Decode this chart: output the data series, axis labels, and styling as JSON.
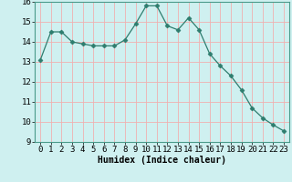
{
  "x": [
    0,
    1,
    2,
    3,
    4,
    5,
    6,
    7,
    8,
    9,
    10,
    11,
    12,
    13,
    14,
    15,
    16,
    17,
    18,
    19,
    20,
    21,
    22,
    23
  ],
  "y": [
    13.1,
    14.5,
    14.5,
    14.0,
    13.9,
    13.8,
    13.8,
    13.8,
    14.1,
    14.9,
    15.8,
    15.8,
    14.8,
    14.6,
    15.2,
    14.6,
    13.4,
    12.8,
    12.3,
    11.6,
    10.7,
    10.2,
    9.85,
    9.55
  ],
  "line_color": "#2e7d6e",
  "marker": "D",
  "marker_size": 2.5,
  "bg_color": "#cff0f0",
  "grid_color": "#f0b0b0",
  "xlabel": "Humidex (Indice chaleur)",
  "ylim": [
    9,
    16
  ],
  "xlim": [
    -0.5,
    23.5
  ],
  "yticks": [
    9,
    10,
    11,
    12,
    13,
    14,
    15,
    16
  ],
  "xticks": [
    0,
    1,
    2,
    3,
    4,
    5,
    6,
    7,
    8,
    9,
    10,
    11,
    12,
    13,
    14,
    15,
    16,
    17,
    18,
    19,
    20,
    21,
    22,
    23
  ],
  "xlabel_fontsize": 7,
  "tick_fontsize": 6.5
}
